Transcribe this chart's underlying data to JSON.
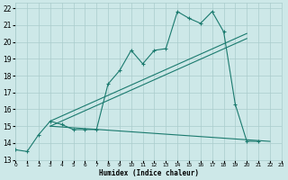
{
  "bg_color": "#cde8e8",
  "grid_color": "#aacccc",
  "line_color": "#1a7a6e",
  "xlabel": "Humidex (Indice chaleur)",
  "xlim": [
    0,
    23
  ],
  "ylim": [
    13,
    22.3
  ],
  "xticks": [
    0,
    1,
    2,
    3,
    4,
    5,
    6,
    7,
    8,
    9,
    10,
    11,
    12,
    13,
    14,
    15,
    16,
    17,
    18,
    19,
    20,
    21,
    22,
    23
  ],
  "yticks": [
    13,
    14,
    15,
    16,
    17,
    18,
    19,
    20,
    21,
    22
  ],
  "main_x": [
    0,
    1,
    2,
    3,
    4,
    5,
    6,
    7,
    8,
    9,
    10,
    11,
    12,
    13,
    14,
    15,
    16,
    17,
    18,
    19,
    20,
    21
  ],
  "main_y": [
    13.6,
    13.5,
    14.5,
    15.3,
    15.1,
    14.8,
    14.8,
    14.8,
    17.5,
    18.3,
    19.5,
    18.7,
    19.5,
    19.6,
    21.8,
    21.4,
    21.1,
    21.8,
    20.6,
    16.3,
    14.1,
    14.1
  ],
  "trend1_x": [
    3,
    20
  ],
  "trend1_y": [
    15.3,
    20.5
  ],
  "trend2_x": [
    3,
    20
  ],
  "trend2_y": [
    15.0,
    20.2
  ],
  "trend3_x": [
    3,
    22
  ],
  "trend3_y": [
    15.0,
    14.1
  ]
}
